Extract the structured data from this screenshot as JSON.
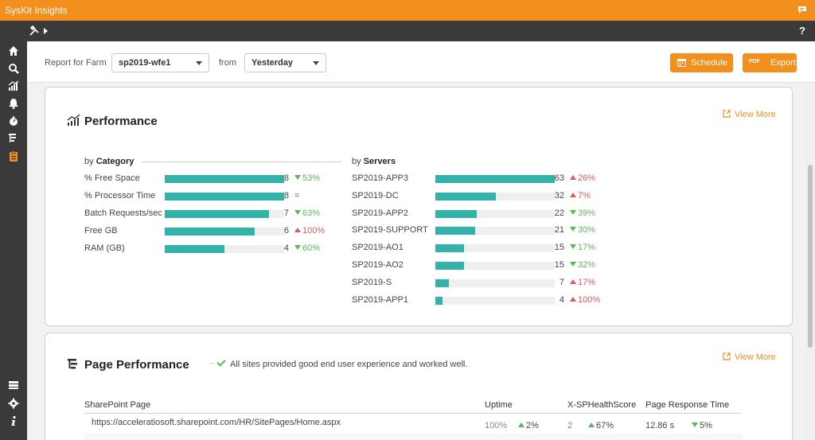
{
  "app": {
    "title": "SysKit Insights"
  },
  "filters": {
    "farm_label": "Report for Farm",
    "farm_value": "sp2019-wfe1",
    "from_label": "from",
    "from_value": "Yesterday"
  },
  "actions": {
    "schedule": "Schedule",
    "export": "Export",
    "export_badge": "PDF"
  },
  "performance": {
    "title": "Performance",
    "view_more": "View More",
    "by_category_prefix": "by",
    "by_category": "Category",
    "by_servers_prefix": "by",
    "by_servers": "Servers",
    "categories": [
      {
        "name": "% Free Space",
        "value": "8",
        "fill": 1.0,
        "dir": "down",
        "change": "53%"
      },
      {
        "name": "% Processor Time",
        "value": "8",
        "fill": 1.0,
        "dir": "none",
        "change": "="
      },
      {
        "name": "Batch Requests/sec",
        "value": "7",
        "fill": 0.875,
        "dir": "down",
        "change": "63%"
      },
      {
        "name": "Free GB",
        "value": "6",
        "fill": 0.75,
        "dir": "up",
        "change": "100%"
      },
      {
        "name": "RAM (GB)",
        "value": "4",
        "fill": 0.5,
        "dir": "down",
        "change": "60%"
      }
    ],
    "servers": [
      {
        "name": "SP2019-APP3",
        "value": "63",
        "fill": 1.0,
        "dir": "up",
        "change": "26%"
      },
      {
        "name": "SP2019-DC",
        "value": "32",
        "fill": 0.508,
        "dir": "up",
        "change": "7%"
      },
      {
        "name": "SP2019-APP2",
        "value": "22",
        "fill": 0.349,
        "dir": "down",
        "change": "39%"
      },
      {
        "name": "SP2019-SUPPORT",
        "value": "21",
        "fill": 0.333,
        "dir": "down",
        "change": "30%"
      },
      {
        "name": "SP2019-AO1",
        "value": "15",
        "fill": 0.238,
        "dir": "down",
        "change": "17%"
      },
      {
        "name": "SP2019-AO2",
        "value": "15",
        "fill": 0.238,
        "dir": "down",
        "change": "32%"
      },
      {
        "name": "SP2019-S",
        "value": "7",
        "fill": 0.111,
        "dir": "up",
        "change": "17%"
      },
      {
        "name": "SP2019-APP1",
        "value": "4",
        "fill": 0.063,
        "dir": "up",
        "change": "100%"
      }
    ]
  },
  "page_performance": {
    "title": "Page Performance",
    "view_more": "View More",
    "message": "All sites provided good end user experience and worked well.",
    "columns": [
      "SharePoint Page",
      "Uptime",
      "X-SPHealthScore",
      "Page Response Time"
    ],
    "rows": [
      {
        "page": "https://acceleratiosoft.sharepoint.com/HR/SitePages/Home.aspx",
        "uptime": "100%",
        "uptime_change": "2%",
        "health": "2",
        "health_change": "67%",
        "response": "12.86 s",
        "response_change": "5%"
      }
    ]
  },
  "colors": {
    "accent": "#f28f1d",
    "bar": "#33b2aa",
    "good": "#5cb85c",
    "bad": "#e05a5a",
    "chrome": "#3a3a3a"
  }
}
